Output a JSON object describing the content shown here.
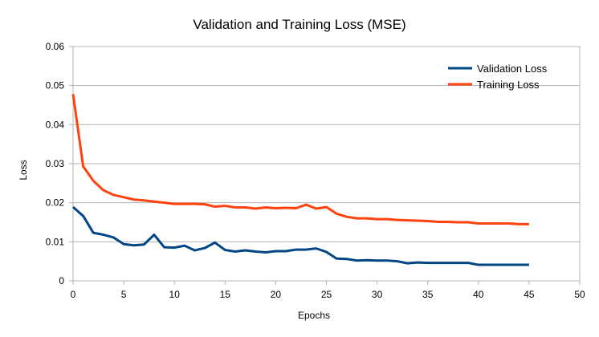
{
  "chart_data": {
    "type": "line",
    "title": "Validation and Training Loss (MSE)",
    "xlabel": "Epochs",
    "ylabel": "Loss",
    "xlim": [
      0,
      50
    ],
    "ylim": [
      0,
      0.06
    ],
    "x_ticks": [
      "0",
      "5",
      "10",
      "15",
      "20",
      "25",
      "30",
      "35",
      "40",
      "45",
      "50"
    ],
    "y_ticks": [
      "0",
      "0.01",
      "0.02",
      "0.03",
      "0.04",
      "0.05",
      "0.06"
    ],
    "grid": "horizontal",
    "legend_position": "top-right",
    "series": [
      {
        "name": "Validation Loss",
        "color": "#004586",
        "x": [
          0,
          1,
          2,
          3,
          4,
          5,
          6,
          7,
          8,
          9,
          10,
          11,
          12,
          13,
          14,
          15,
          16,
          17,
          18,
          19,
          20,
          21,
          22,
          23,
          24,
          25,
          26,
          27,
          28,
          29,
          30,
          31,
          32,
          33,
          34,
          35,
          36,
          37,
          38,
          39,
          40,
          41,
          42,
          43,
          44,
          45
        ],
        "values": [
          0.0189,
          0.0166,
          0.0123,
          0.0118,
          0.0111,
          0.0094,
          0.0091,
          0.0093,
          0.0118,
          0.0086,
          0.0085,
          0.009,
          0.0078,
          0.0084,
          0.0098,
          0.0079,
          0.0075,
          0.0078,
          0.0075,
          0.0073,
          0.0076,
          0.0076,
          0.008,
          0.008,
          0.0083,
          0.0074,
          0.0057,
          0.0056,
          0.0052,
          0.0053,
          0.0052,
          0.0052,
          0.005,
          0.0045,
          0.0047,
          0.0046,
          0.0046,
          0.0046,
          0.0046,
          0.0046,
          0.0041,
          0.0041,
          0.0041,
          0.0041,
          0.0041,
          0.0041
        ]
      },
      {
        "name": "Training Loss",
        "color": "#ff420e",
        "x": [
          0,
          1,
          2,
          3,
          4,
          5,
          6,
          7,
          8,
          9,
          10,
          11,
          12,
          13,
          14,
          15,
          16,
          17,
          18,
          19,
          20,
          21,
          22,
          23,
          24,
          25,
          26,
          27,
          28,
          29,
          30,
          31,
          32,
          33,
          34,
          35,
          36,
          37,
          38,
          39,
          40,
          41,
          42,
          43,
          44,
          45
        ],
        "values": [
          0.0478,
          0.0293,
          0.0256,
          0.0232,
          0.022,
          0.0214,
          0.0208,
          0.0206,
          0.0203,
          0.02,
          0.0197,
          0.0197,
          0.0197,
          0.0196,
          0.019,
          0.0192,
          0.0188,
          0.0188,
          0.0185,
          0.0188,
          0.0186,
          0.0187,
          0.0186,
          0.0195,
          0.0185,
          0.0189,
          0.0172,
          0.0164,
          0.016,
          0.016,
          0.0158,
          0.0158,
          0.0156,
          0.0155,
          0.0154,
          0.0153,
          0.0151,
          0.0151,
          0.015,
          0.015,
          0.0147,
          0.0147,
          0.0147,
          0.0147,
          0.0145,
          0.0145
        ]
      }
    ]
  }
}
